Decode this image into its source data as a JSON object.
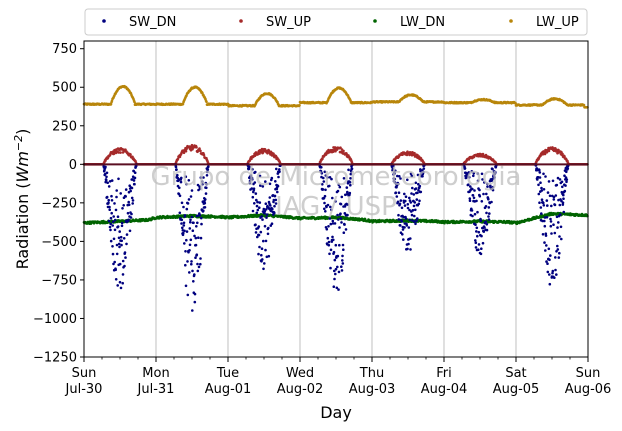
{
  "chart_data": {
    "type": "scatter",
    "title": "",
    "xlabel": "Day",
    "ylabel": "Radiation (Wm⁻²)",
    "ylabel_main": "Radiation (",
    "ylabel_unit": "Wm",
    "ylabel_exp": "−2",
    "ylabel_close": ")",
    "ylim": [
      -1250,
      800
    ],
    "xlim": [
      0,
      7
    ],
    "x_unit": "days since Sun Jul-30 00:00",
    "grid": "vertical at each day",
    "legend_position": "top, above plot, single row",
    "yticks": [
      -1250,
      -1000,
      -750,
      -500,
      -250,
      0,
      250,
      500,
      750
    ],
    "ytick_labels": [
      "−1250",
      "−1000",
      "−750",
      "−500",
      "−250",
      "0",
      "250",
      "500",
      "750"
    ],
    "xticks": [
      {
        "day": "Sun",
        "date": "Jul-30"
      },
      {
        "day": "Mon",
        "date": "Jul-31"
      },
      {
        "day": "Tue",
        "date": "Aug-01"
      },
      {
        "day": "Wed",
        "date": "Aug-02"
      },
      {
        "day": "Thu",
        "date": "Aug-03"
      },
      {
        "day": "Fri",
        "date": "Aug-04"
      },
      {
        "day": "Sat",
        "date": "Aug-05"
      },
      {
        "day": "Sun",
        "date": "Aug-06"
      }
    ],
    "watermark": [
      "Grupo de Micrometeorologia",
      "IAG / USP"
    ],
    "series": [
      {
        "name": "SW_DN",
        "color": "#00007f",
        "description": "Downward shortwave (plotted negative); 0 at night, dips during daytime",
        "daily_minimum": [
          -790,
          -920,
          -660,
          -800,
          -560,
          -560,
          -760
        ],
        "baseline": 0,
        "daytime_hours": [
          6.5,
          17.5
        ]
      },
      {
        "name": "SW_UP",
        "color": "#a52a2a",
        "description": "Upward shortwave; 0 at night, small daytime peaks",
        "daily_maximum": [
          100,
          120,
          95,
          110,
          80,
          65,
          105
        ],
        "baseline": 0,
        "daytime_hours": [
          6.5,
          17.5
        ]
      },
      {
        "name": "LW_DN",
        "color": "#006400",
        "description": "Downward longwave (plotted negative)",
        "points": [
          [
            0.0,
            -380
          ],
          [
            0.5,
            -370
          ],
          [
            0.9,
            -360
          ],
          [
            1.0,
            -345
          ],
          [
            1.5,
            -335
          ],
          [
            1.9,
            -340
          ],
          [
            2.0,
            -345
          ],
          [
            2.5,
            -330
          ],
          [
            2.9,
            -345
          ],
          [
            3.0,
            -350
          ],
          [
            3.5,
            -345
          ],
          [
            3.9,
            -360
          ],
          [
            4.0,
            -370
          ],
          [
            4.5,
            -365
          ],
          [
            4.9,
            -370
          ],
          [
            5.0,
            -375
          ],
          [
            5.5,
            -370
          ],
          [
            5.9,
            -375
          ],
          [
            6.0,
            -380
          ],
          [
            6.5,
            -320
          ],
          [
            7.0,
            -330
          ]
        ]
      },
      {
        "name": "LW_UP",
        "color": "#b8860b",
        "description": "Upward longwave with daytime peaks",
        "baseline_by_day": [
          390,
          390,
          380,
          400,
          405,
          400,
          385
        ],
        "daily_peak": [
          505,
          500,
          460,
          495,
          450,
          420,
          425
        ],
        "end_value": 370
      }
    ]
  }
}
